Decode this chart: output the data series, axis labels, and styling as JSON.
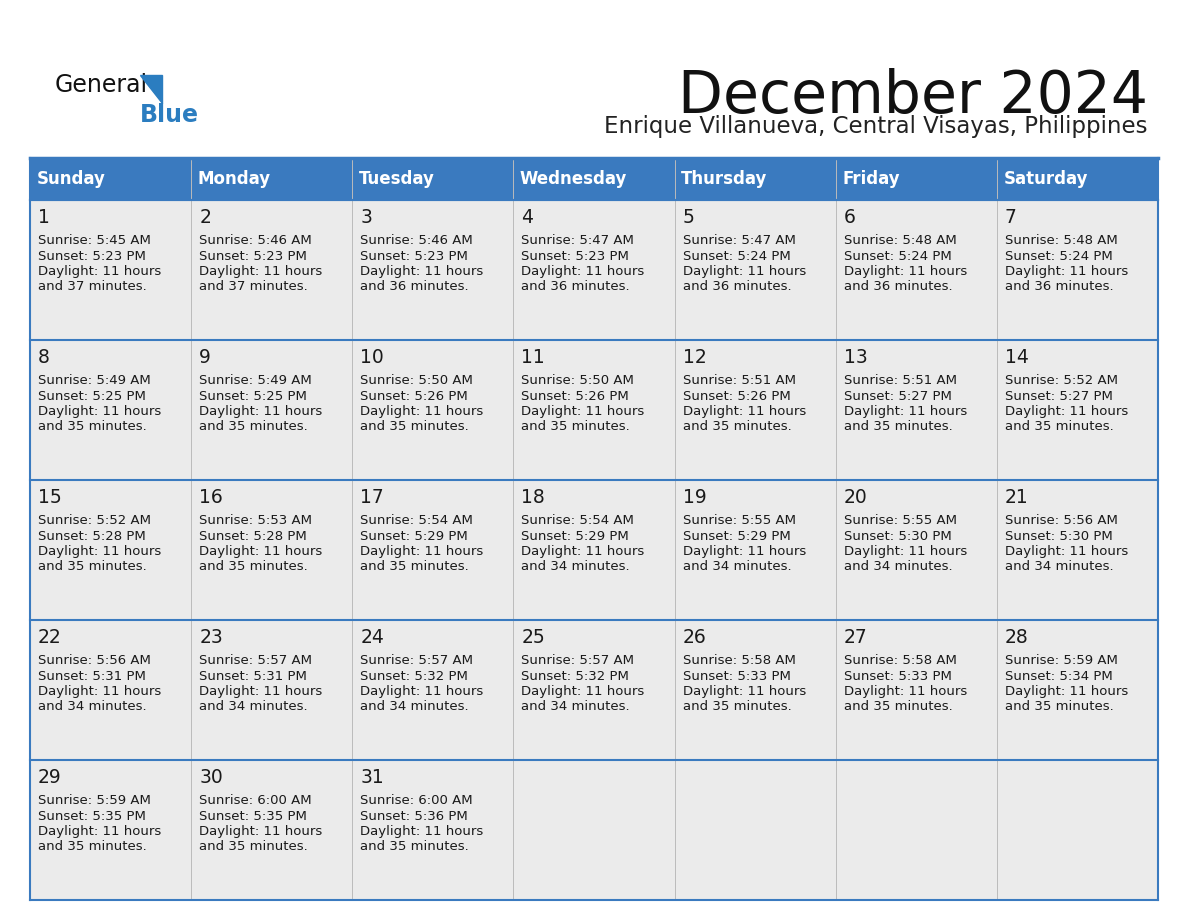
{
  "title": "December 2024",
  "subtitle": "Enrique Villanueva, Central Visayas, Philippines",
  "header_color": "#3a7abf",
  "header_text_color": "#ffffff",
  "cell_bg": "#ebebeb",
  "border_color": "#3a7abf",
  "text_color": "#1a1a1a",
  "days_of_week": [
    "Sunday",
    "Monday",
    "Tuesday",
    "Wednesday",
    "Thursday",
    "Friday",
    "Saturday"
  ],
  "calendar": [
    [
      {
        "day": 1,
        "sunrise": "5:45 AM",
        "sunset": "5:23 PM",
        "daylight": "11 hours and 37 minutes."
      },
      {
        "day": 2,
        "sunrise": "5:46 AM",
        "sunset": "5:23 PM",
        "daylight": "11 hours and 37 minutes."
      },
      {
        "day": 3,
        "sunrise": "5:46 AM",
        "sunset": "5:23 PM",
        "daylight": "11 hours and 36 minutes."
      },
      {
        "day": 4,
        "sunrise": "5:47 AM",
        "sunset": "5:23 PM",
        "daylight": "11 hours and 36 minutes."
      },
      {
        "day": 5,
        "sunrise": "5:47 AM",
        "sunset": "5:24 PM",
        "daylight": "11 hours and 36 minutes."
      },
      {
        "day": 6,
        "sunrise": "5:48 AM",
        "sunset": "5:24 PM",
        "daylight": "11 hours and 36 minutes."
      },
      {
        "day": 7,
        "sunrise": "5:48 AM",
        "sunset": "5:24 PM",
        "daylight": "11 hours and 36 minutes."
      }
    ],
    [
      {
        "day": 8,
        "sunrise": "5:49 AM",
        "sunset": "5:25 PM",
        "daylight": "11 hours and 35 minutes."
      },
      {
        "day": 9,
        "sunrise": "5:49 AM",
        "sunset": "5:25 PM",
        "daylight": "11 hours and 35 minutes."
      },
      {
        "day": 10,
        "sunrise": "5:50 AM",
        "sunset": "5:26 PM",
        "daylight": "11 hours and 35 minutes."
      },
      {
        "day": 11,
        "sunrise": "5:50 AM",
        "sunset": "5:26 PM",
        "daylight": "11 hours and 35 minutes."
      },
      {
        "day": 12,
        "sunrise": "5:51 AM",
        "sunset": "5:26 PM",
        "daylight": "11 hours and 35 minutes."
      },
      {
        "day": 13,
        "sunrise": "5:51 AM",
        "sunset": "5:27 PM",
        "daylight": "11 hours and 35 minutes."
      },
      {
        "day": 14,
        "sunrise": "5:52 AM",
        "sunset": "5:27 PM",
        "daylight": "11 hours and 35 minutes."
      }
    ],
    [
      {
        "day": 15,
        "sunrise": "5:52 AM",
        "sunset": "5:28 PM",
        "daylight": "11 hours and 35 minutes."
      },
      {
        "day": 16,
        "sunrise": "5:53 AM",
        "sunset": "5:28 PM",
        "daylight": "11 hours and 35 minutes."
      },
      {
        "day": 17,
        "sunrise": "5:54 AM",
        "sunset": "5:29 PM",
        "daylight": "11 hours and 35 minutes."
      },
      {
        "day": 18,
        "sunrise": "5:54 AM",
        "sunset": "5:29 PM",
        "daylight": "11 hours and 34 minutes."
      },
      {
        "day": 19,
        "sunrise": "5:55 AM",
        "sunset": "5:29 PM",
        "daylight": "11 hours and 34 minutes."
      },
      {
        "day": 20,
        "sunrise": "5:55 AM",
        "sunset": "5:30 PM",
        "daylight": "11 hours and 34 minutes."
      },
      {
        "day": 21,
        "sunrise": "5:56 AM",
        "sunset": "5:30 PM",
        "daylight": "11 hours and 34 minutes."
      }
    ],
    [
      {
        "day": 22,
        "sunrise": "5:56 AM",
        "sunset": "5:31 PM",
        "daylight": "11 hours and 34 minutes."
      },
      {
        "day": 23,
        "sunrise": "5:57 AM",
        "sunset": "5:31 PM",
        "daylight": "11 hours and 34 minutes."
      },
      {
        "day": 24,
        "sunrise": "5:57 AM",
        "sunset": "5:32 PM",
        "daylight": "11 hours and 34 minutes."
      },
      {
        "day": 25,
        "sunrise": "5:57 AM",
        "sunset": "5:32 PM",
        "daylight": "11 hours and 34 minutes."
      },
      {
        "day": 26,
        "sunrise": "5:58 AM",
        "sunset": "5:33 PM",
        "daylight": "11 hours and 35 minutes."
      },
      {
        "day": 27,
        "sunrise": "5:58 AM",
        "sunset": "5:33 PM",
        "daylight": "11 hours and 35 minutes."
      },
      {
        "day": 28,
        "sunrise": "5:59 AM",
        "sunset": "5:34 PM",
        "daylight": "11 hours and 35 minutes."
      }
    ],
    [
      {
        "day": 29,
        "sunrise": "5:59 AM",
        "sunset": "5:35 PM",
        "daylight": "11 hours and 35 minutes."
      },
      {
        "day": 30,
        "sunrise": "6:00 AM",
        "sunset": "5:35 PM",
        "daylight": "11 hours and 35 minutes."
      },
      {
        "day": 31,
        "sunrise": "6:00 AM",
        "sunset": "5:36 PM",
        "daylight": "11 hours and 35 minutes."
      },
      null,
      null,
      null,
      null
    ]
  ]
}
